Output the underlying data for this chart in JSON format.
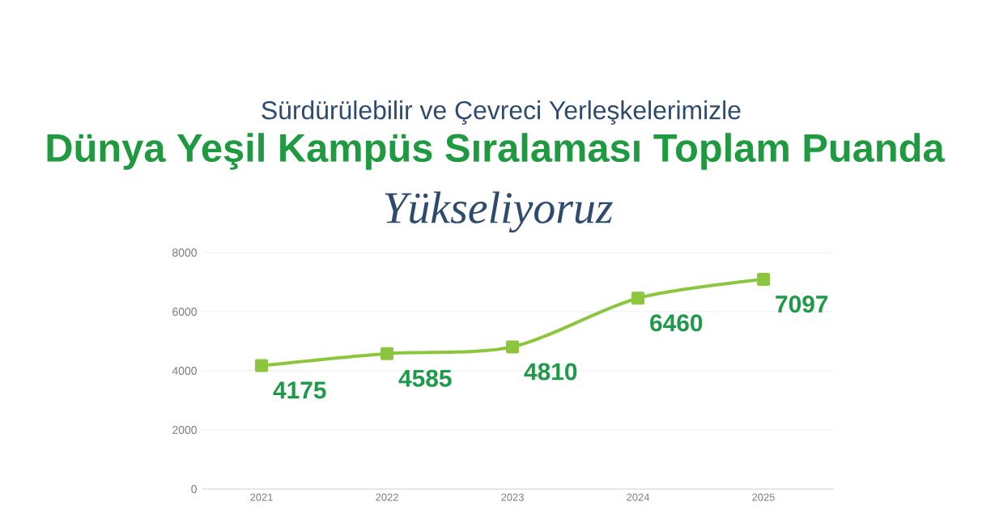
{
  "chart_data": {
    "type": "line",
    "title": "Dünya Yeşil Kampüs Sıralaması Toplam Puanda",
    "subtitle": "Sürdürülebilir ve Çevreci Yerleşkelerimizle",
    "annotations": [
      "Yükseliyoruz"
    ],
    "categories": [
      "2021",
      "2022",
      "2023",
      "2024",
      "2025"
    ],
    "series": [
      {
        "color": "#8cc63f",
        "values": [
          4175,
          4585,
          4810,
          6460,
          7097
        ]
      }
    ],
    "ylim": [
      0,
      8000
    ],
    "yticks": [
      0,
      2000,
      4000,
      6000,
      8000
    ],
    "grid": "y",
    "marker": "square",
    "line_style": "solid",
    "data_labels": true
  }
}
